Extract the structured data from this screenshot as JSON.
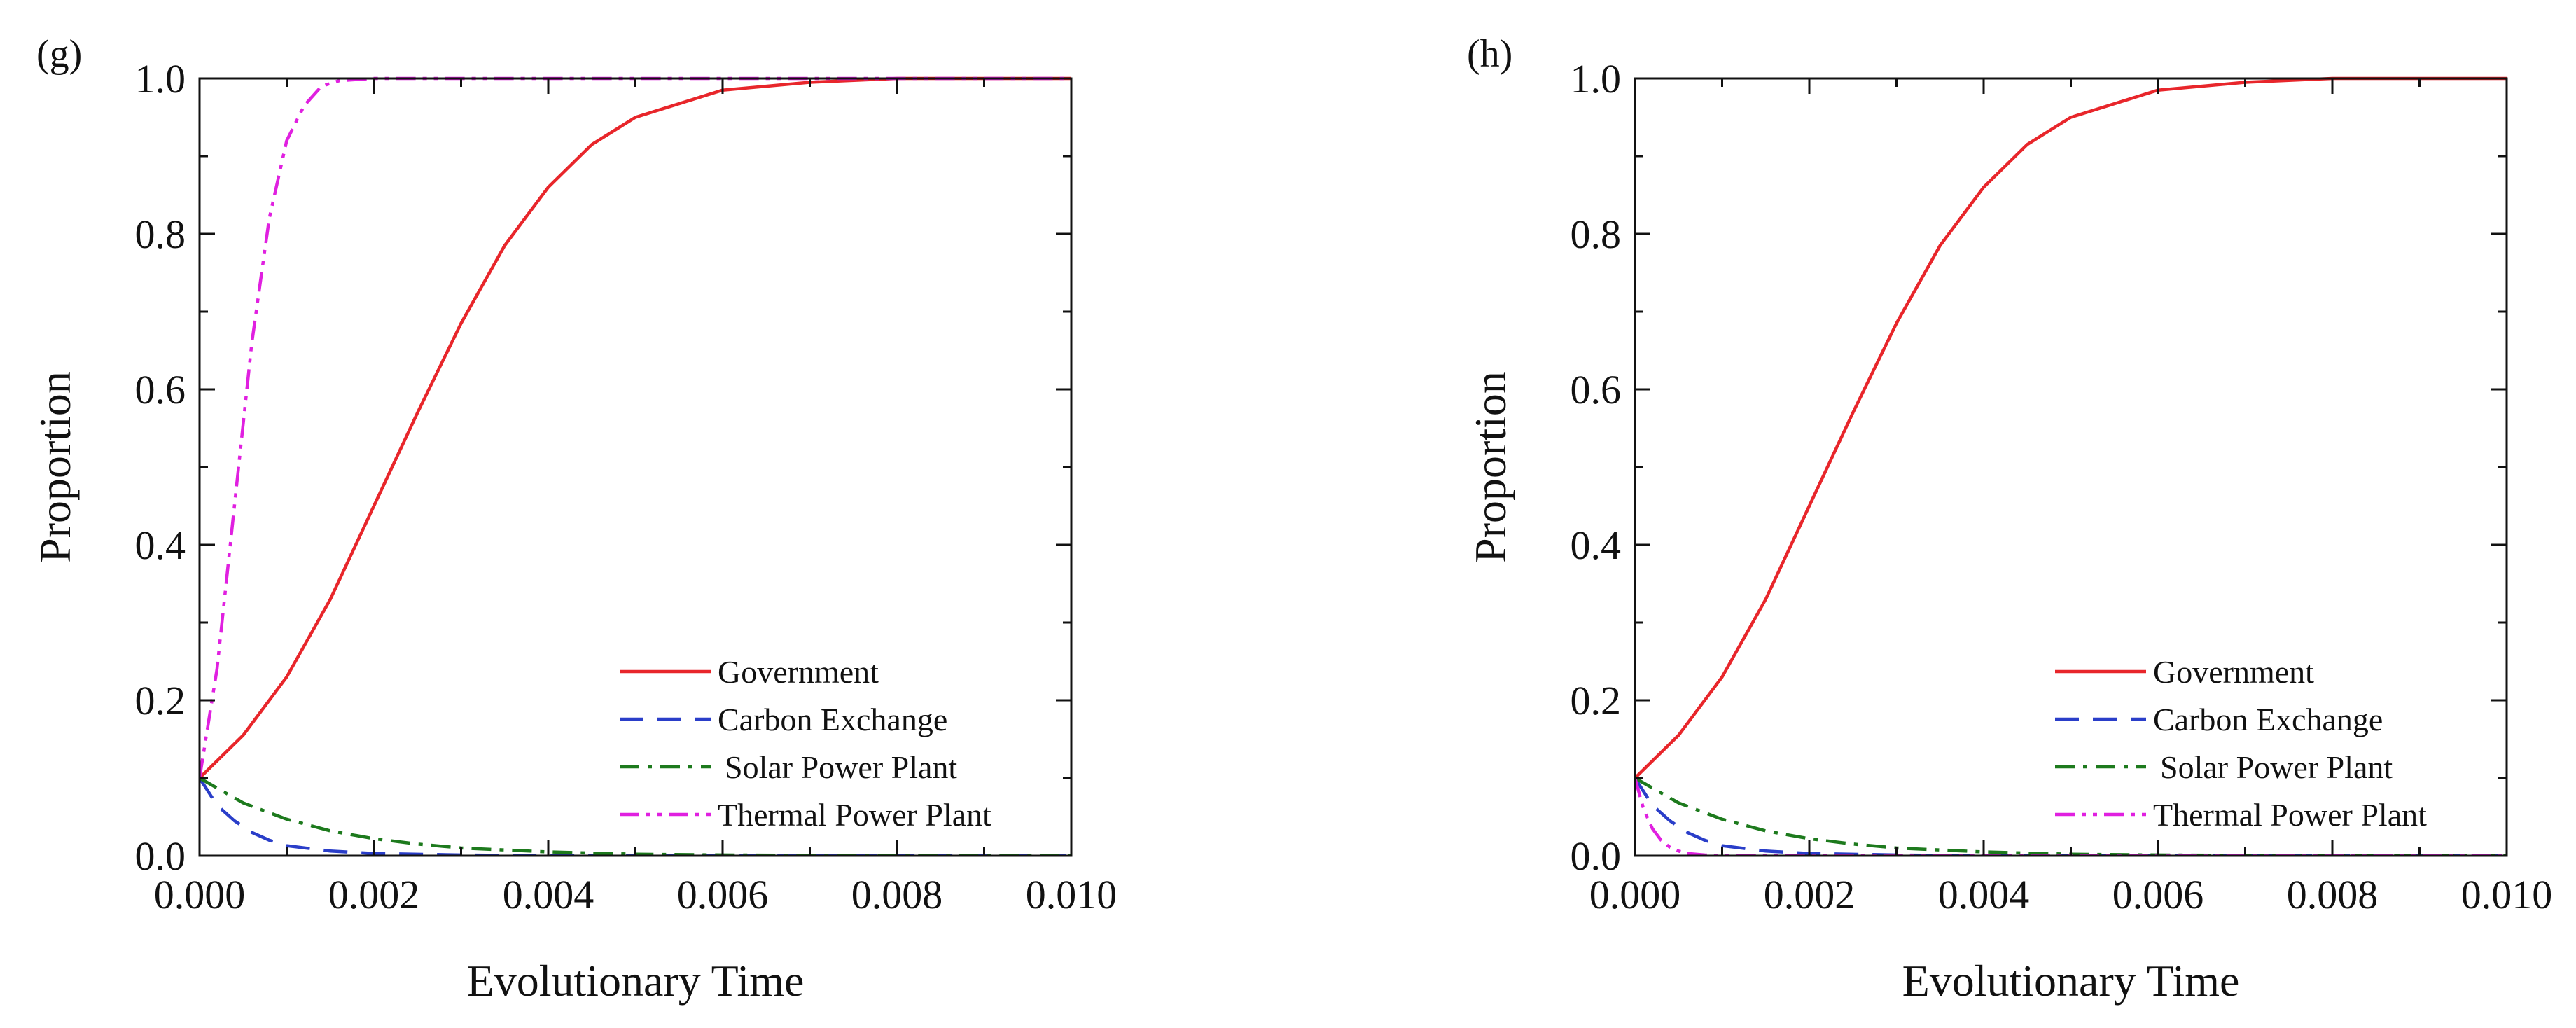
{
  "chart_data": [
    {
      "type": "line",
      "panel_label": "(g)",
      "xlabel": "Evolutionary Time",
      "ylabel": "Proportion",
      "xlim": [
        0,
        0.01
      ],
      "ylim": [
        0,
        1
      ],
      "x_ticks": [
        "0.000",
        "0.002",
        "0.004",
        "0.006",
        "0.008",
        "0.010"
      ],
      "y_ticks": [
        "0.0",
        "0.2",
        "0.4",
        "0.6",
        "0.8",
        "1.0"
      ],
      "grid": false,
      "legend_position": "bottom-right",
      "series": [
        {
          "name": "Government",
          "color": "#e8262b",
          "style": "solid",
          "x": [
            0,
            0.0005,
            0.001,
            0.0015,
            0.002,
            0.0025,
            0.003,
            0.0035,
            0.004,
            0.0045,
            0.005,
            0.006,
            0.007,
            0.008,
            0.009,
            0.01
          ],
          "y": [
            0.1,
            0.155,
            0.23,
            0.33,
            0.45,
            0.57,
            0.685,
            0.785,
            0.86,
            0.915,
            0.95,
            0.985,
            0.995,
            1.0,
            1.0,
            1.0
          ]
        },
        {
          "name": "Carbon Exchange",
          "color": "#2a3ec9",
          "style": "dashed",
          "x": [
            0,
            0.0002,
            0.0004,
            0.0006,
            0.0008,
            0.001,
            0.0015,
            0.002,
            0.003,
            0.004,
            0.006,
            0.01
          ],
          "y": [
            0.1,
            0.065,
            0.045,
            0.03,
            0.02,
            0.013,
            0.006,
            0.003,
            0.001,
            0.0,
            0.0,
            0.0
          ]
        },
        {
          "name": "Solar Power Plant",
          "color": "#1d7a1d",
          "style": "dashdot",
          "x": [
            0,
            0.0005,
            0.001,
            0.0015,
            0.002,
            0.0025,
            0.003,
            0.004,
            0.005,
            0.006,
            0.008,
            0.01
          ],
          "y": [
            0.1,
            0.068,
            0.047,
            0.032,
            0.022,
            0.015,
            0.01,
            0.005,
            0.002,
            0.001,
            0.0,
            0.0
          ]
        },
        {
          "name": "Thermal Power Plant",
          "color": "#e020e0",
          "style": "dashdotdot",
          "x": [
            0,
            0.0002,
            0.0004,
            0.0006,
            0.0008,
            0.001,
            0.0012,
            0.0014,
            0.0016,
            0.002,
            0.003,
            0.005,
            0.01
          ],
          "y": [
            0.1,
            0.24,
            0.45,
            0.66,
            0.82,
            0.92,
            0.965,
            0.99,
            0.997,
            1.0,
            1.0,
            1.0,
            1.0
          ]
        }
      ]
    },
    {
      "type": "line",
      "panel_label": "(h)",
      "xlabel": "Evolutionary Time",
      "ylabel": "Proportion",
      "xlim": [
        0,
        0.01
      ],
      "ylim": [
        0,
        1
      ],
      "x_ticks": [
        "0.000",
        "0.002",
        "0.004",
        "0.006",
        "0.008",
        "0.010"
      ],
      "y_ticks": [
        "0.0",
        "0.2",
        "0.4",
        "0.6",
        "0.8",
        "1.0"
      ],
      "grid": false,
      "legend_position": "bottom-right",
      "series": [
        {
          "name": "Government",
          "color": "#e8262b",
          "style": "solid",
          "x": [
            0,
            0.0005,
            0.001,
            0.0015,
            0.002,
            0.0025,
            0.003,
            0.0035,
            0.004,
            0.0045,
            0.005,
            0.006,
            0.007,
            0.008,
            0.009,
            0.01
          ],
          "y": [
            0.1,
            0.155,
            0.23,
            0.33,
            0.45,
            0.57,
            0.685,
            0.785,
            0.86,
            0.915,
            0.95,
            0.985,
            0.995,
            1.0,
            1.0,
            1.0
          ]
        },
        {
          "name": "Carbon Exchange",
          "color": "#2a3ec9",
          "style": "dashed",
          "x": [
            0,
            0.0002,
            0.0004,
            0.0006,
            0.0008,
            0.001,
            0.0015,
            0.002,
            0.003,
            0.004,
            0.006,
            0.01
          ],
          "y": [
            0.1,
            0.065,
            0.045,
            0.03,
            0.02,
            0.013,
            0.006,
            0.003,
            0.001,
            0.0,
            0.0,
            0.0
          ]
        },
        {
          "name": "Solar Power Plant",
          "color": "#1d7a1d",
          "style": "dashdot",
          "x": [
            0,
            0.0005,
            0.001,
            0.0015,
            0.002,
            0.0025,
            0.003,
            0.004,
            0.005,
            0.006,
            0.008,
            0.01
          ],
          "y": [
            0.1,
            0.068,
            0.047,
            0.032,
            0.022,
            0.015,
            0.01,
            0.005,
            0.002,
            0.001,
            0.0,
            0.0
          ]
        },
        {
          "name": "Thermal Power Plant",
          "color": "#e020e0",
          "style": "dashdotdot",
          "x": [
            0,
            0.0001,
            0.0002,
            0.0003,
            0.0004,
            0.0005,
            0.0006,
            0.0008,
            0.001,
            0.0015,
            0.01
          ],
          "y": [
            0.1,
            0.06,
            0.035,
            0.02,
            0.011,
            0.006,
            0.003,
            0.001,
            0.0,
            0.0,
            0.0
          ]
        }
      ]
    }
  ]
}
